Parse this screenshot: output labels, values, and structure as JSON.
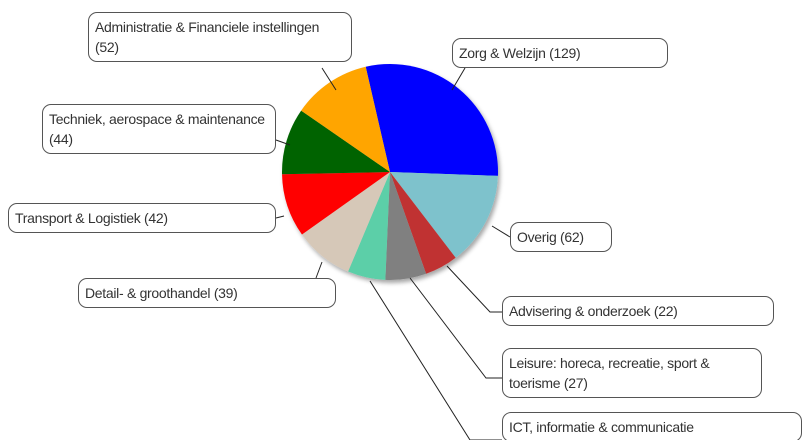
{
  "chart_data": {
    "type": "pie",
    "categories": [
      "Zorg & Welzijn (129)",
      "Overig (62)",
      "Advisering & onderzoek (22)",
      "Leisure: horeca, recreatie, sport & toerisme (27)",
      "ICT, informatie & communicatie",
      "Detail- & groothandel (39)",
      "Transport & Logistiek (42)",
      "Techniek, aerospace & maintenance (44)",
      "Administratie & Financiele instellingen (52)"
    ],
    "values": [
      129,
      62,
      22,
      27,
      25,
      39,
      42,
      44,
      52
    ],
    "colors": [
      "#0000ff",
      "#7ec2cc",
      "#c03232",
      "#808080",
      "#5ccfa8",
      "#d6c8b8",
      "#ff0000",
      "#006400",
      "#ffa500"
    ]
  }
}
